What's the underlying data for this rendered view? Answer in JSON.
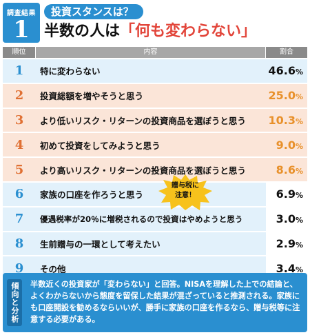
{
  "header": {
    "badge_label": "調査結果",
    "badge_number": "1",
    "question": "投資スタンスは？",
    "headline_prefix": "半数の人は",
    "headline_highlight": "「何も変わらない」"
  },
  "table": {
    "columns": {
      "rank": "順位",
      "content": "内容",
      "percent": "割合"
    },
    "unit": "%",
    "rows": [
      {
        "rank": "1",
        "content": "特に変わらない",
        "value": "46.6"
      },
      {
        "rank": "2",
        "content": "投資総額を増やそうと思う",
        "value": "25.0"
      },
      {
        "rank": "3",
        "content": "より低いリスク・リターンの投資商品を選ぼうと思う",
        "value": "10.3"
      },
      {
        "rank": "4",
        "content": "初めて投資をしてみようと思う",
        "value": "9.0"
      },
      {
        "rank": "5",
        "content": "より高いリスク・リターンの投資商品を選ぼうと思う",
        "value": "8.6"
      },
      {
        "rank": "6",
        "content": "家族の口座を作ろうと思う",
        "value": "6.9"
      },
      {
        "rank": "7",
        "content": "優遇税率が20％に増税されるので投資はやめようと思う",
        "value": "3.0"
      },
      {
        "rank": "8",
        "content": "生前贈与の一環として考えたい",
        "value": "2.9"
      },
      {
        "rank": "9",
        "content": "その他",
        "value": "3.4"
      }
    ]
  },
  "callout": {
    "line1": "贈与税に",
    "line2": "注意！"
  },
  "footer": {
    "tag": "傾向と分析",
    "text": "半数近くの投資家が「変わらない」と回答。NISAを理解した上での結論と、よくわからないから態度を留保した結果が混ざっていると推測される。家族にも口座開設を勧めるならいいが、勝手に家族の口座を作るなら、贈与税等に注意する必要がある。"
  },
  "colors": {
    "accent_blue": "#2a8fd0",
    "accent_orange": "#e07033",
    "headline_red": "#e2453a",
    "callout_yellow": "#f7c21c"
  }
}
